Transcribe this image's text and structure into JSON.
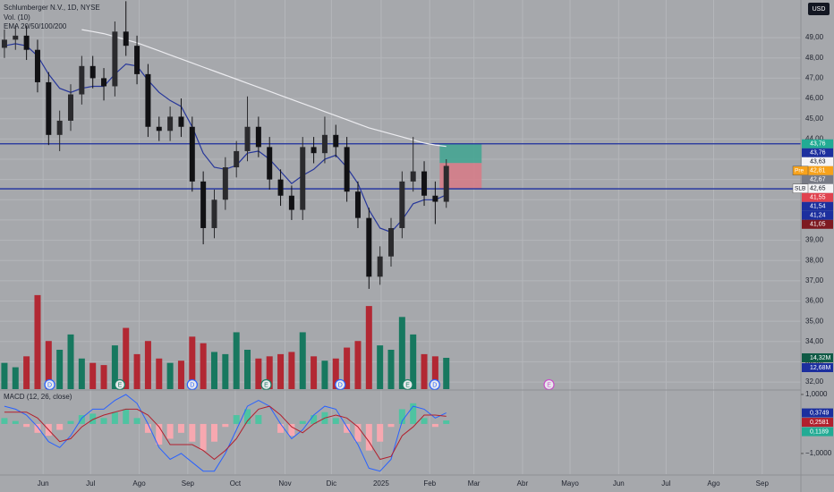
{
  "chart_data": {
    "type": "candlestick",
    "title": "Schlumberger N.V., 1D, NYSE",
    "indicators": [
      "Vol. (10)",
      "EMA 20/50/100/200"
    ],
    "macd_title": "MACD (12, 26, close)",
    "currency": "USD",
    "xlim": [
      -3.9,
      68.6
    ],
    "xticks": [
      {
        "value": 0,
        "label": "Jun"
      },
      {
        "value": 4.3,
        "label": "Jul"
      },
      {
        "value": 8.7,
        "label": "Ago"
      },
      {
        "value": 13.1,
        "label": "Sep"
      },
      {
        "value": 17.4,
        "label": "Oct"
      },
      {
        "value": 21.9,
        "label": "Nov"
      },
      {
        "value": 26.1,
        "label": "Dic"
      },
      {
        "value": 30.6,
        "label": "2025"
      },
      {
        "value": 35.0,
        "label": "Feb"
      },
      {
        "value": 39.0,
        "label": "Mar"
      },
      {
        "value": 43.4,
        "label": "Abr"
      },
      {
        "value": 47.7,
        "label": "Mayo"
      },
      {
        "value": 52.1,
        "label": "Jun"
      },
      {
        "value": 56.4,
        "label": "Jul"
      },
      {
        "value": 60.7,
        "label": "Ago"
      },
      {
        "value": 65.1,
        "label": "Sep"
      }
    ],
    "ylim": [
      31.65,
      50.86
    ],
    "yticks": [
      {
        "value": 32,
        "label": "32,00"
      },
      {
        "value": 33,
        "label": "33,00"
      },
      {
        "value": 34,
        "label": "34,00"
      },
      {
        "value": 35,
        "label": "35,00"
      },
      {
        "value": 36,
        "label": "36,00"
      },
      {
        "value": 37,
        "label": "37,00"
      },
      {
        "value": 38,
        "label": "38,00"
      },
      {
        "value": 39,
        "label": "39,00"
      },
      {
        "value": 40,
        "label": "40,00"
      },
      {
        "value": 41,
        "label": "41,00"
      },
      {
        "value": 42,
        "label": "42,00"
      },
      {
        "value": 43,
        "label": "43,00"
      },
      {
        "value": 44,
        "label": "44,00"
      },
      {
        "value": 45,
        "label": "45,00"
      },
      {
        "value": 46,
        "label": "46,00"
      },
      {
        "value": 47,
        "label": "47,00"
      },
      {
        "value": 48,
        "label": "48,00"
      },
      {
        "value": 49,
        "label": "49,00"
      }
    ],
    "grid": true,
    "up_color": "#2b2b2e",
    "down_color": "#111114",
    "candles": {
      "x": [
        -3.5,
        -2.5,
        -1.5,
        -0.5,
        0.5,
        1.5,
        2.5,
        3.5,
        4.5,
        5.5,
        6.5,
        7.5,
        8.5,
        9.5,
        10.5,
        11.5,
        12.5,
        13.5,
        14.5,
        15.5,
        16.5,
        17.5,
        18.5,
        19.5,
        20.5,
        21.5,
        22.5,
        23.5,
        24.5,
        25.5,
        26.5,
        27.5,
        28.5,
        29.5,
        30.5,
        31.5,
        32.5,
        33.5,
        34.5,
        35.5,
        36.5
      ],
      "open": [
        48.5,
        48.9,
        49.1,
        48.4,
        46.8,
        44.2,
        44.9,
        46.2,
        47.6,
        47.0,
        46.6,
        49.3,
        48.6,
        47.2,
        44.6,
        44.4,
        45.1,
        44.6,
        41.9,
        39.6,
        41.0,
        42.6,
        43.4,
        44.6,
        43.6,
        42.0,
        41.2,
        40.5,
        43.6,
        43.3,
        44.2,
        43.6,
        41.4,
        40.1,
        37.2,
        38.2,
        39.6,
        41.9,
        42.4,
        41.2,
        40.9
      ],
      "high": [
        49.4,
        49.6,
        49.6,
        48.9,
        47.3,
        45.4,
        46.7,
        48.1,
        48.1,
        47.5,
        49.8,
        50.8,
        49.1,
        47.7,
        45.1,
        45.6,
        46.0,
        45.1,
        42.4,
        41.5,
        43.1,
        43.9,
        46.1,
        45.1,
        44.1,
        42.5,
        41.7,
        44.1,
        44.1,
        45.1,
        44.7,
        44.1,
        41.9,
        40.6,
        38.7,
        40.1,
        42.4,
        44.1,
        42.9,
        41.9,
        43.0
      ],
      "low": [
        48.0,
        48.4,
        47.9,
        46.3,
        43.7,
        43.4,
        44.4,
        45.7,
        46.5,
        45.9,
        46.1,
        48.1,
        46.7,
        44.1,
        43.9,
        43.9,
        44.1,
        41.4,
        38.8,
        39.1,
        40.5,
        42.1,
        42.9,
        43.1,
        41.5,
        40.7,
        40.0,
        40.0,
        42.8,
        42.8,
        43.1,
        40.9,
        39.6,
        36.6,
        36.8,
        37.7,
        39.1,
        41.4,
        40.7,
        39.8,
        40.6
      ],
      "close": [
        48.9,
        49.1,
        48.4,
        46.8,
        44.2,
        44.9,
        46.2,
        47.6,
        47.0,
        46.6,
        49.3,
        48.6,
        47.2,
        44.6,
        44.4,
        45.1,
        44.6,
        41.9,
        39.6,
        41.0,
        42.6,
        43.4,
        44.6,
        43.6,
        42.0,
        41.2,
        40.5,
        43.6,
        43.3,
        44.2,
        43.6,
        41.4,
        40.1,
        37.2,
        38.2,
        39.6,
        41.9,
        42.4,
        41.2,
        40.9,
        42.67
      ]
    },
    "volume": [
      12000000,
      10000000,
      15000000,
      43000000,
      22000000,
      18000000,
      25000000,
      14000000,
      12000000,
      11000000,
      20000000,
      28000000,
      16000000,
      22000000,
      14000000,
      12000000,
      13000000,
      24000000,
      21000000,
      17000000,
      16000000,
      26000000,
      18000000,
      14000000,
      15000000,
      16000000,
      17000000,
      26000000,
      15000000,
      13000000,
      14000000,
      19000000,
      22000000,
      38000000,
      20000000,
      18000000,
      33000000,
      25000000,
      16000000,
      15000000,
      14320000
    ],
    "volume_lim": [
      0,
      45000000
    ],
    "volume_up_color": "#17785f",
    "volume_down_color": "#b22833",
    "overlays": [
      {
        "color": "#ececf0",
        "values": [
          null,
          null,
          null,
          null,
          null,
          null,
          null,
          49.4,
          49.3,
          49.2,
          49.05,
          48.9,
          48.75,
          48.55,
          48.35,
          48.15,
          47.95,
          47.75,
          47.55,
          47.35,
          47.15,
          46.95,
          46.75,
          46.55,
          46.35,
          46.15,
          45.95,
          45.75,
          45.55,
          45.35,
          45.15,
          44.95,
          44.75,
          44.55,
          44.4,
          44.25,
          44.1,
          43.95,
          43.8,
          43.7,
          43.63
        ]
      },
      {
        "color": "#26369a",
        "values": [
          48.6,
          48.7,
          48.6,
          48.1,
          47.2,
          46.5,
          46.3,
          46.5,
          46.6,
          46.6,
          47.2,
          47.7,
          47.6,
          46.9,
          46.3,
          45.9,
          45.6,
          44.6,
          43.3,
          42.6,
          42.5,
          42.7,
          43.3,
          43.4,
          43.0,
          42.4,
          41.8,
          42.2,
          42.5,
          43.0,
          43.2,
          42.6,
          41.8,
          40.5,
          39.6,
          39.4,
          40.0,
          40.8,
          41.0,
          41.0,
          41.24
        ]
      }
    ],
    "levels": [
      {
        "value": 43.76,
        "color": "#1c2f9e"
      },
      {
        "value": 41.54,
        "color": "#1c2f9e"
      }
    ],
    "position": {
      "x": [
        35.9,
        39.7
      ],
      "target": 43.76,
      "entry": 42.81,
      "stop": 41.54,
      "profit_color": "#3fa491",
      "loss_color": "#d77a86"
    },
    "price_tags": [
      {
        "value": 43.76,
        "label": "43,76",
        "color": "#22ab94",
        "text_color": "#ffffff"
      },
      {
        "value": 43.76,
        "label": "43,76",
        "color": "#1c2f9e",
        "text_color": "#ffffff"
      },
      {
        "value": 43.63,
        "label": "43,63",
        "color": "#f4f4f6",
        "text_color": "#131722"
      },
      {
        "value": 42.81,
        "label": "42,81",
        "prefix": "Pre",
        "color": "#f7a21b",
        "text_color": "#ffffff"
      },
      {
        "value": 42.67,
        "label": "42,67",
        "color": "#787b86",
        "text_color": "#ffffff"
      },
      {
        "value": 42.65,
        "label": "42,65",
        "prefix": "SLB",
        "color": "#f4f4f6",
        "text_color": "#131722"
      },
      {
        "value": 41.55,
        "label": "41,55",
        "color": "#e0424f",
        "text_color": "#ffffff"
      },
      {
        "value": 41.54,
        "label": "41,54",
        "color": "#1c2f9e",
        "text_color": "#ffffff"
      },
      {
        "value": 41.24,
        "label": "41,24",
        "color": "#1c2f9e",
        "text_color": "#ffffff"
      },
      {
        "value": 41.05,
        "label": "41,05",
        "color": "#7e1a20",
        "text_color": "#ffffff"
      }
    ],
    "volume_tags": [
      {
        "value": 14320000,
        "label": "14,32M",
        "color": "#0f5a45"
      },
      {
        "value": 12680000,
        "label": "12,68M",
        "color": "#1c2f9e"
      }
    ],
    "events": [
      {
        "x": 0.6,
        "label": "D",
        "color": "#2962ff"
      },
      {
        "x": 6.95,
        "label": "E",
        "color": "#1a7f64"
      },
      {
        "x": 13.5,
        "label": "D",
        "color": "#2962ff"
      },
      {
        "x": 20.2,
        "label": "E",
        "color": "#1a7f64"
      },
      {
        "x": 26.9,
        "label": "D",
        "color": "#2962ff"
      },
      {
        "x": 33.0,
        "label": "E",
        "color": "#1a7f64"
      },
      {
        "x": 35.45,
        "label": "D",
        "color": "#2962ff"
      },
      {
        "x": 45.8,
        "label": "E",
        "color": "#c850c8"
      }
    ],
    "macd": {
      "ylim": [
        -1.7,
        1.12
      ],
      "yticks": [
        {
          "value": 1,
          "label": "1,0000"
        },
        {
          "value": -1,
          "label": "−1,0000"
        }
      ],
      "histogram": [
        0.2,
        0.1,
        -0.1,
        -0.3,
        -0.4,
        -0.2,
        0.1,
        0.3,
        0.35,
        0.2,
        0.4,
        0.5,
        0.2,
        -0.3,
        -0.7,
        -0.5,
        -0.3,
        -0.6,
        -0.9,
        -0.6,
        -0.1,
        0.3,
        0.5,
        0.3,
        0,
        -0.3,
        -0.4,
        0.1,
        0.3,
        0.4,
        0.2,
        -0.3,
        -0.6,
        -0.9,
        -0.6,
        -0.1,
        0.5,
        0.7,
        0.2,
        -0.1,
        0.1189
      ],
      "macd": [
        0.6,
        0.5,
        0.3,
        -0.1,
        -0.6,
        -0.8,
        -0.4,
        0.2,
        0.5,
        0.5,
        0.8,
        1.0,
        0.7,
        0.0,
        -0.8,
        -1.2,
        -1.0,
        -1.3,
        -1.6,
        -1.6,
        -1.0,
        -0.2,
        0.6,
        0.8,
        0.6,
        0.0,
        -0.5,
        -0.2,
        0.3,
        0.6,
        0.5,
        -0.1,
        -0.7,
        -1.5,
        -1.6,
        -1.2,
        0.1,
        0.6,
        0.5,
        0.2,
        0.3749
      ],
      "signal": [
        0.4,
        0.4,
        0.4,
        0.2,
        -0.2,
        -0.6,
        -0.5,
        -0.1,
        0.15,
        0.3,
        0.4,
        0.5,
        0.5,
        0.3,
        -0.1,
        -0.7,
        -0.7,
        -0.7,
        -0.9,
        -1.2,
        -0.9,
        -0.5,
        0.1,
        0.5,
        0.6,
        0.3,
        -0.1,
        -0.3,
        0.0,
        0.2,
        0.3,
        0.2,
        -0.1,
        -0.6,
        -1.2,
        -1.1,
        -0.4,
        -0.1,
        0.3,
        0.3,
        0.2581
      ],
      "macd_color": "#2962ff",
      "signal_color": "#b2202e",
      "hist_up_color": "#4fc3a1",
      "hist_down_color": "#f7a8b0",
      "tags": [
        {
          "value": 0.3749,
          "label": "0,3749",
          "color": "#1c2f9e"
        },
        {
          "value": 0.2581,
          "label": "0,2581",
          "color": "#b2202e"
        },
        {
          "value": 0.1189,
          "label": "0,1189",
          "color": "#22ab94"
        }
      ]
    }
  }
}
